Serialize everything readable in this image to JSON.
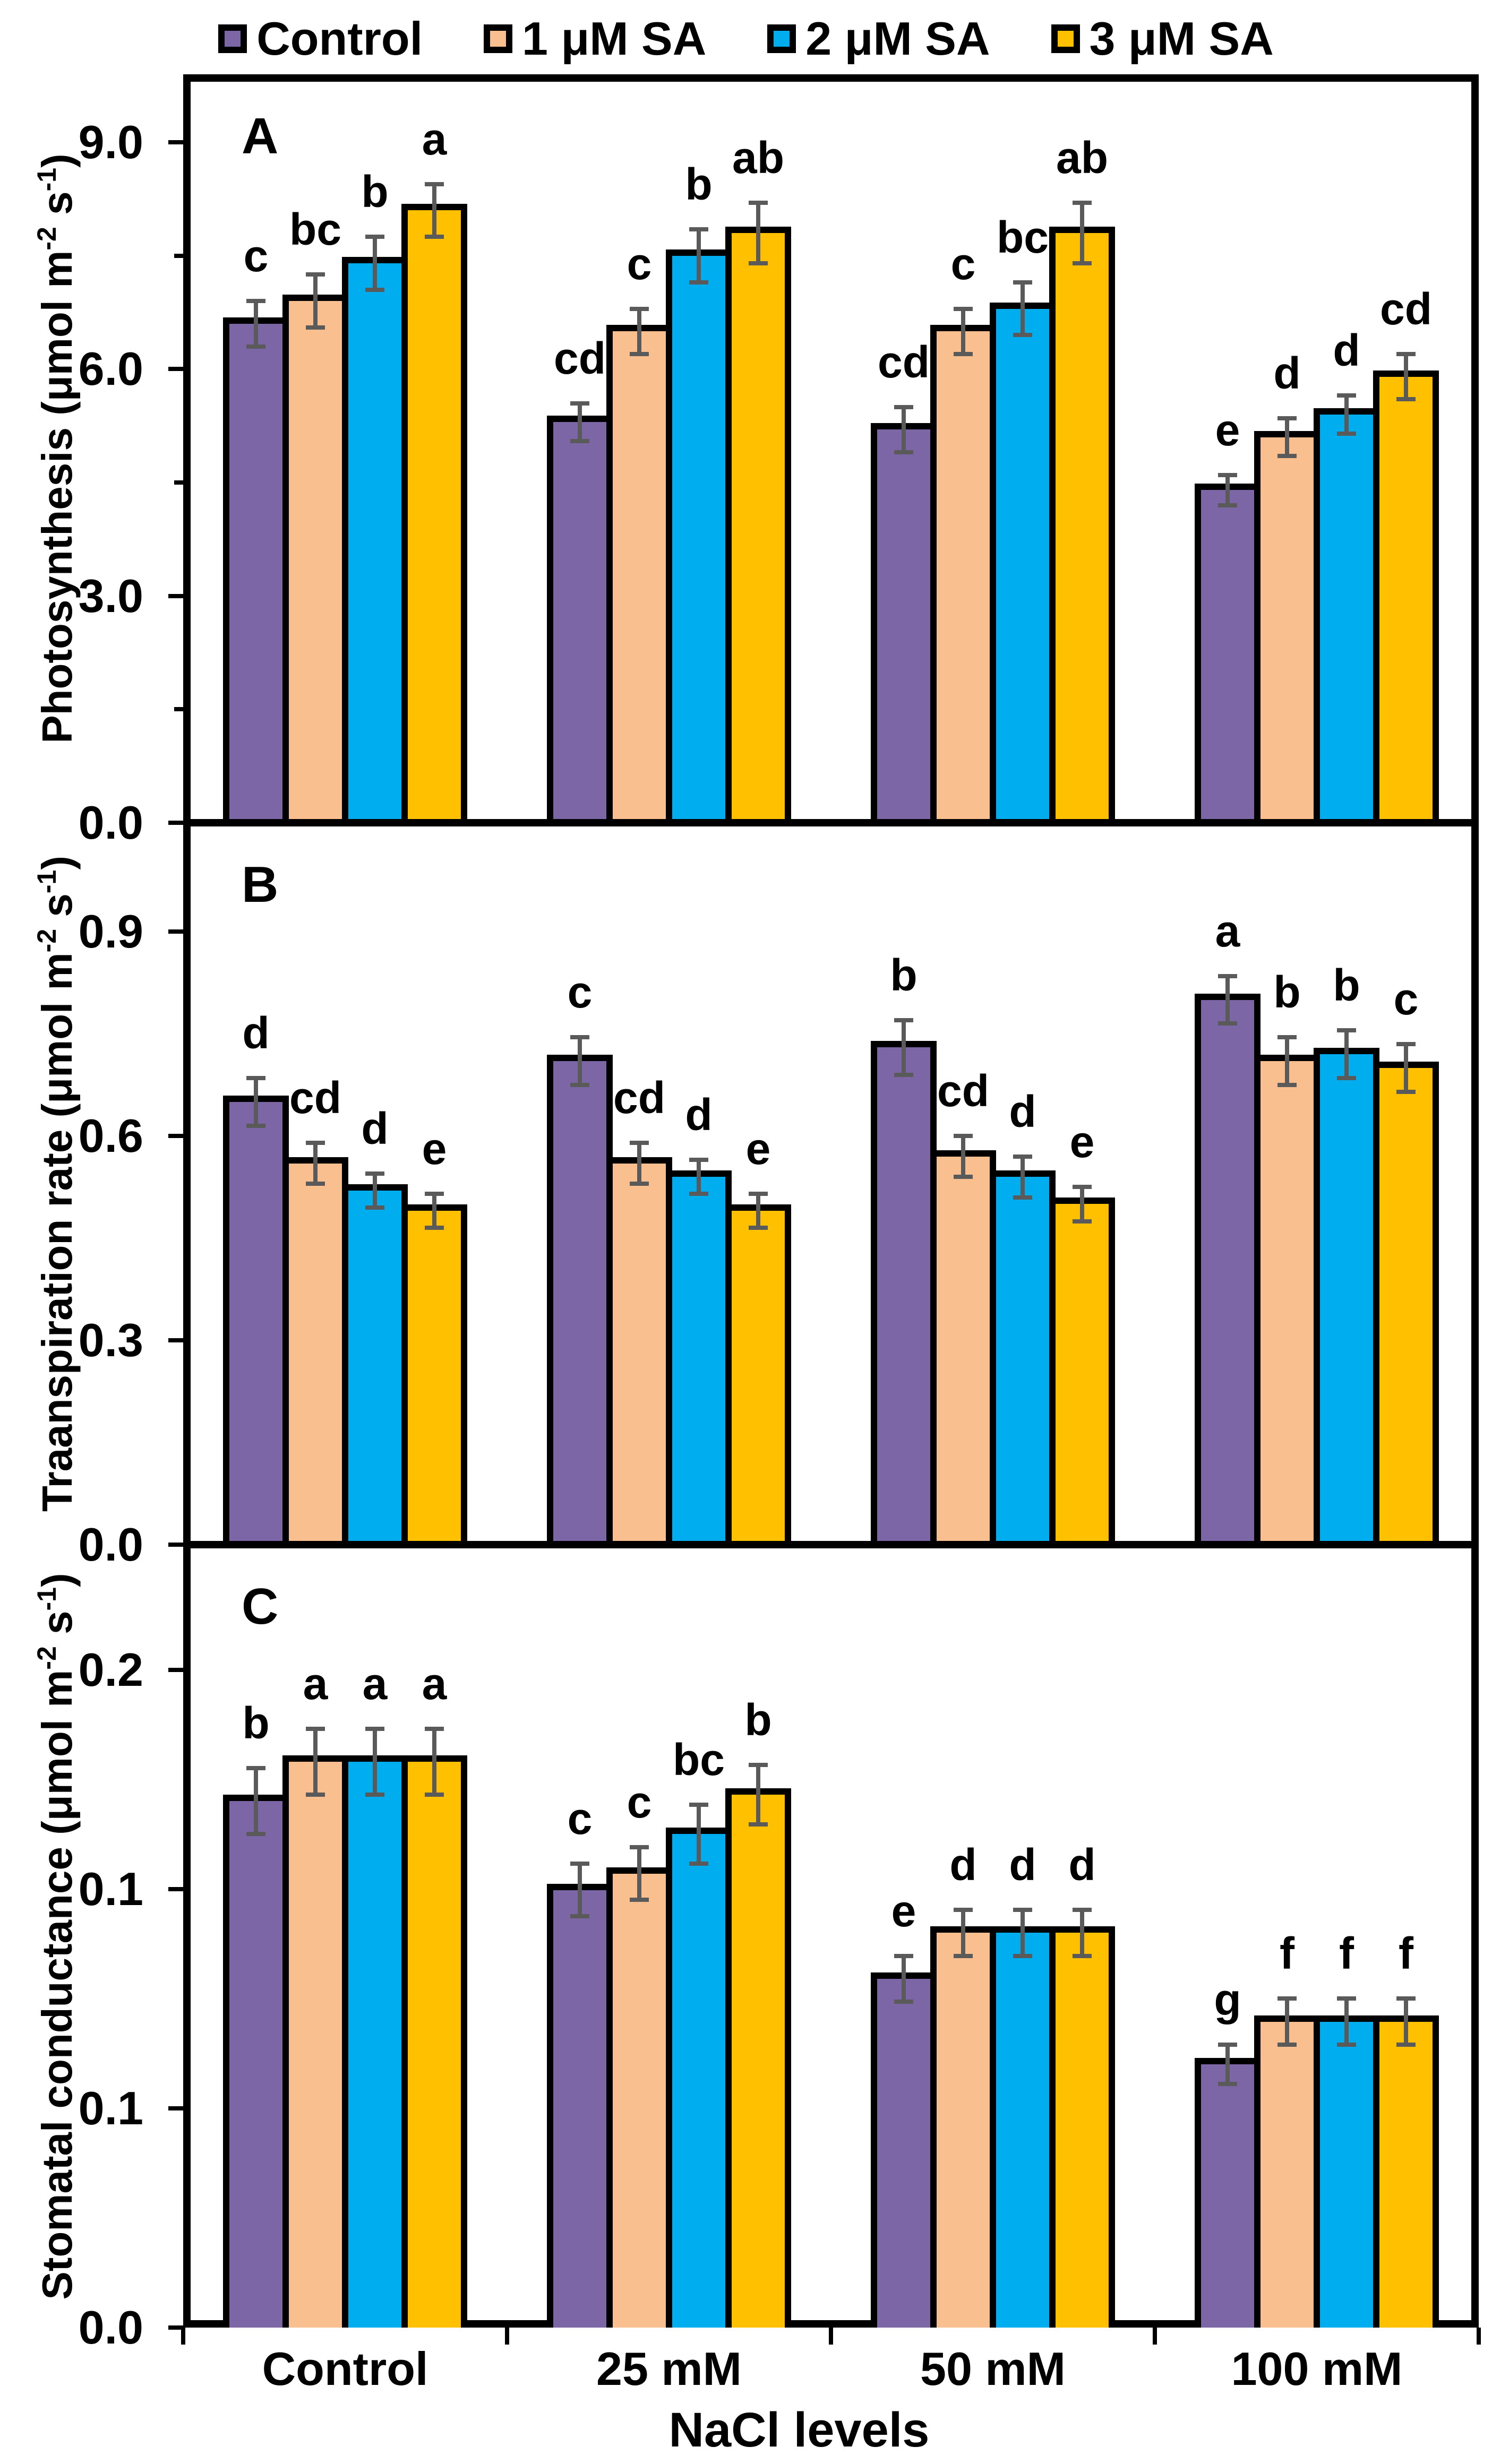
{
  "legend": {
    "items": [
      {
        "label": "Control"
      },
      {
        "label": "1 μM SA"
      },
      {
        "label": "2 μM SA"
      },
      {
        "label": "3 μM SA"
      }
    ]
  },
  "chart_data": {
    "type": "bar",
    "categories": [
      "Control",
      "25 mM",
      "50 mM",
      "100 mM"
    ],
    "xlabel": "NaCl levels",
    "legend_position": "top",
    "grid": false,
    "error_bar_color": "#5a5a5a",
    "bar_outline_color": "#000000",
    "series_names": [
      "Control",
      "1 μM SA",
      "2 μM SA",
      "3 μM SA"
    ],
    "series_colors": [
      "#7d66a6",
      "#f9bf8f",
      "#00aeef",
      "#ffc000"
    ],
    "panels": [
      {
        "panel_label": "A",
        "ylabel_parts": [
          [
            "Photosynthesis (μmol m",
            0
          ],
          [
            "-2",
            1
          ],
          [
            " s",
            0
          ],
          [
            "-1",
            1
          ],
          [
            ")",
            0
          ]
        ],
        "ylim": [
          0,
          9.9
        ],
        "yticks": [
          {
            "v": 0.0,
            "label": "0.0"
          },
          {
            "v": 1.5
          },
          {
            "v": 3.0,
            "label": "3.0"
          },
          {
            "v": 4.5
          },
          {
            "v": 6.0,
            "label": "6.0"
          },
          {
            "v": 7.5
          },
          {
            "v": 9.0,
            "label": "9.0"
          }
        ],
        "series": [
          {
            "name": "Control",
            "values": [
              6.6,
              5.3,
              5.2,
              4.4
            ],
            "errors": [
              0.3,
              0.25,
              0.3,
              0.2
            ],
            "letters": [
              "c",
              "cd",
              "cd",
              "e"
            ]
          },
          {
            "name": "1 μM SA",
            "values": [
              6.9,
              6.5,
              6.5,
              5.1
            ],
            "errors": [
              0.35,
              0.3,
              0.3,
              0.25
            ],
            "letters": [
              "bc",
              "c",
              "c",
              "d"
            ]
          },
          {
            "name": "2 μM SA",
            "values": [
              7.4,
              7.5,
              6.8,
              5.4
            ],
            "errors": [
              0.35,
              0.35,
              0.35,
              0.25
            ],
            "letters": [
              "b",
              "b",
              "bc",
              "d"
            ]
          },
          {
            "name": "3 μM SA",
            "values": [
              8.1,
              7.8,
              7.8,
              5.9
            ],
            "errors": [
              0.35,
              0.4,
              0.4,
              0.3
            ],
            "letters": [
              "a",
              "ab",
              "ab",
              "cd"
            ]
          }
        ]
      },
      {
        "panel_label": "B",
        "ylabel_parts": [
          [
            "Traanspiration rate (μmol m",
            0
          ],
          [
            "-2",
            1
          ],
          [
            " s",
            0
          ],
          [
            "-1",
            1
          ],
          [
            ")",
            0
          ]
        ],
        "ylim": [
          0,
          1.06
        ],
        "yticks": [
          {
            "v": 0.0,
            "label": "0.0"
          },
          {
            "v": 0.3,
            "label": "0.3"
          },
          {
            "v": 0.6,
            "label": "0.6"
          },
          {
            "v": 0.9,
            "label": "0.9"
          }
        ],
        "series": [
          {
            "name": "Control",
            "values": [
              0.65,
              0.71,
              0.73,
              0.8
            ],
            "errors": [
              0.035,
              0.035,
              0.04,
              0.035
            ],
            "letters": [
              "d",
              "c",
              "b",
              "a"
            ]
          },
          {
            "name": "1 μM SA",
            "values": [
              0.56,
              0.56,
              0.57,
              0.71
            ],
            "errors": [
              0.03,
              0.03,
              0.03,
              0.035
            ],
            "letters": [
              "cd",
              "cd",
              "cd",
              "b"
            ]
          },
          {
            "name": "2 μM SA",
            "values": [
              0.52,
              0.54,
              0.54,
              0.72
            ],
            "errors": [
              0.025,
              0.025,
              0.03,
              0.035
            ],
            "letters": [
              "d",
              "d",
              "d",
              "b"
            ]
          },
          {
            "name": "3 μM SA",
            "values": [
              0.49,
              0.49,
              0.5,
              0.7
            ],
            "errors": [
              0.025,
              0.025,
              0.025,
              0.035
            ],
            "letters": [
              "e",
              "e",
              "e",
              "c"
            ]
          }
        ]
      },
      {
        "panel_label": "C",
        "ylabel_parts": [
          [
            "Stomatal conductance (μmol m",
            0
          ],
          [
            "-2",
            1
          ],
          [
            " s",
            0
          ],
          [
            "-1",
            1
          ],
          [
            ")",
            0
          ]
        ],
        "ylim": [
          0,
          0.238
        ],
        "yticks": [
          {
            "v": 0.0,
            "label": "0.0"
          },
          {
            "v": 0.0667,
            "label": "0.1"
          },
          {
            "v": 0.1333,
            "label": "0.1"
          },
          {
            "v": 0.2,
            "label": "0.2"
          }
        ],
        "series": [
          {
            "name": "Control",
            "values": [
              0.16,
              0.133,
              0.106,
              0.08
            ],
            "errors": [
              0.01,
              0.008,
              0.007,
              0.006
            ],
            "letters": [
              "b",
              "c",
              "e",
              "g"
            ]
          },
          {
            "name": "1 μM SA",
            "values": [
              0.172,
              0.138,
              0.12,
              0.093
            ],
            "errors": [
              0.01,
              0.008,
              0.007,
              0.007
            ],
            "letters": [
              "a",
              "c",
              "d",
              "f"
            ]
          },
          {
            "name": "2 μM SA",
            "values": [
              0.172,
              0.15,
              0.12,
              0.093
            ],
            "errors": [
              0.01,
              0.009,
              0.007,
              0.007
            ],
            "letters": [
              "a",
              "bc",
              "d",
              "f"
            ]
          },
          {
            "name": "3 μM SA",
            "values": [
              0.172,
              0.162,
              0.12,
              0.093
            ],
            "errors": [
              0.01,
              0.009,
              0.007,
              0.007
            ],
            "letters": [
              "a",
              "b",
              "d",
              "f"
            ]
          }
        ]
      }
    ]
  }
}
